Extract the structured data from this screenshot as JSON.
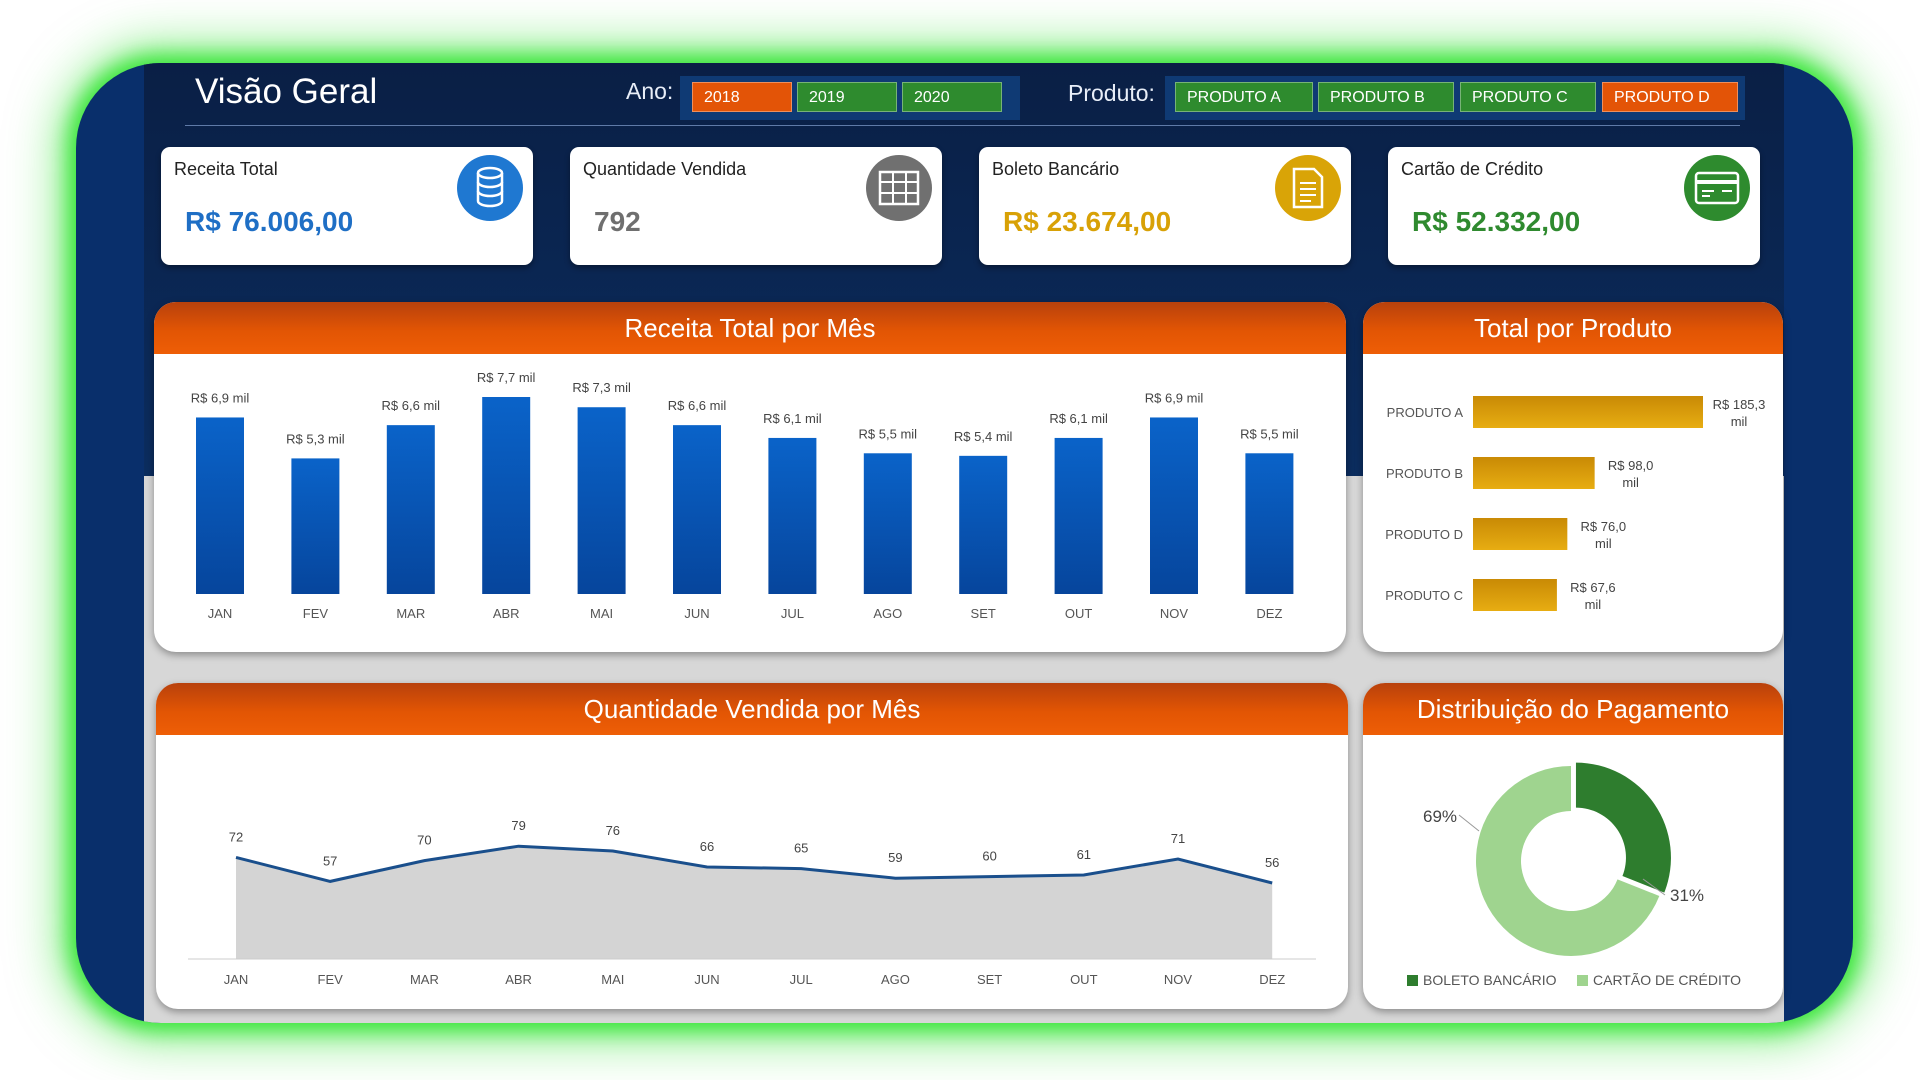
{
  "header": {
    "title": "Visão Geral",
    "ano_label": "Ano:",
    "produto_label": "Produto:"
  },
  "filters": {
    "years": [
      {
        "label": "2018",
        "color": "#e35407"
      },
      {
        "label": "2019",
        "color": "#2e8b2e"
      },
      {
        "label": "2020",
        "color": "#2e8b2e"
      }
    ],
    "products": [
      {
        "label": "PRODUTO A",
        "color": "#2e8b2e"
      },
      {
        "label": "PRODUTO B",
        "color": "#2e8b2e"
      },
      {
        "label": "PRODUTO C",
        "color": "#2e8b2e"
      },
      {
        "label": "PRODUTO D",
        "color": "#e35407"
      }
    ]
  },
  "kpis": [
    {
      "label": "Receita Total",
      "value": "R$ 76.006,00",
      "color": "#1f6fc5",
      "icon": "database-icon"
    },
    {
      "label": "Quantidade Vendida",
      "value": "792",
      "color": "#6f6f6f",
      "icon": "table-icon"
    },
    {
      "label": "Boleto Bancário",
      "value": "R$ 23.674,00",
      "color": "#d8a106",
      "icon": "document-icon"
    },
    {
      "label": "Cartão de Crédito",
      "value": "R$ 52.332,00",
      "color": "#2f8a2f",
      "icon": "credit-card-icon"
    }
  ],
  "colors": {
    "bar_top": "#0a63c9",
    "bar_bottom": "#06459c",
    "line": "#1a4f8c",
    "area": "#d4d4d4",
    "hbar": "#d69a06",
    "boleto": "#2e7d2e",
    "cartao": "#9fd48f"
  },
  "chart_data": [
    {
      "type": "bar",
      "title": "Receita Total por Mês",
      "categories": [
        "JAN",
        "FEV",
        "MAR",
        "ABR",
        "MAI",
        "JUN",
        "JUL",
        "AGO",
        "SET",
        "OUT",
        "NOV",
        "DEZ"
      ],
      "values": [
        6.9,
        5.3,
        6.6,
        7.7,
        7.3,
        6.6,
        6.1,
        5.5,
        5.4,
        6.1,
        6.9,
        5.5
      ],
      "labels": [
        "R$ 6,9 mil",
        "R$ 5,3 mil",
        "R$ 6,6 mil",
        "R$ 7,7 mil",
        "R$ 7,3 mil",
        "R$ 6,6 mil",
        "R$ 6,1 mil",
        "R$ 5,5 mil",
        "R$ 5,4 mil",
        "R$ 6,1 mil",
        "R$ 6,9 mil",
        "R$ 5,5 mil"
      ],
      "ylim": [
        0,
        7.7
      ]
    },
    {
      "type": "bar",
      "title": "Total por Produto",
      "categories": [
        "PRODUTO A",
        "PRODUTO B",
        "PRODUTO D",
        "PRODUTO C"
      ],
      "values": [
        185.3,
        98.0,
        76.0,
        67.6
      ],
      "labels": [
        [
          "R$ 185,3",
          "mil"
        ],
        [
          "R$ 98,0",
          "mil"
        ],
        [
          "R$ 76,0",
          "mil"
        ],
        [
          "R$ 67,6",
          "mil"
        ]
      ],
      "orientation": "horizontal"
    },
    {
      "type": "area",
      "title": "Quantidade Vendida por Mês",
      "categories": [
        "JAN",
        "FEV",
        "MAR",
        "ABR",
        "MAI",
        "JUN",
        "JUL",
        "AGO",
        "SET",
        "OUT",
        "NOV",
        "DEZ"
      ],
      "values": [
        72,
        57,
        70,
        79,
        76,
        66,
        65,
        59,
        60,
        61,
        71,
        56
      ]
    },
    {
      "type": "pie",
      "title": "Distribuição do Pagamento",
      "labels": [
        "BOLETO BANCÁRIO",
        "CARTÃO DE CRÉDITO"
      ],
      "values": [
        31,
        69
      ],
      "value_labels": [
        "31%",
        "69%"
      ],
      "legend": "bottom"
    }
  ]
}
